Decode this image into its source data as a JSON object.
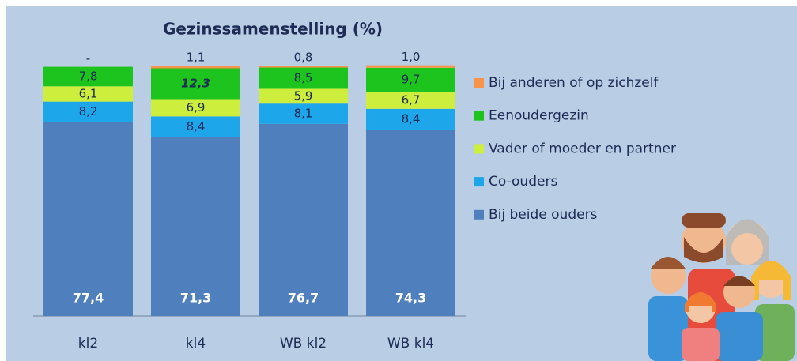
{
  "chart_data": {
    "type": "stacked-bar",
    "title": "Gezinssamenstelling (%)",
    "categories": [
      "kl2",
      "kl4",
      "WB kl2",
      "WB kl4"
    ],
    "series": [
      {
        "name": "Bij beide ouders",
        "color": "#4f7fbd",
        "values": [
          77.4,
          71.3,
          76.7,
          74.3
        ],
        "value_labels": [
          "77,4",
          "71,3",
          "76,7",
          "74,3"
        ]
      },
      {
        "name": "Co-ouders",
        "color": "#1ea6ea",
        "values": [
          8.2,
          8.4,
          8.1,
          8.4
        ],
        "value_labels": [
          "8,2",
          "8,4",
          "8,1",
          "8,4"
        ]
      },
      {
        "name": "Vader of moeder en partner",
        "color": "#cdee3c",
        "values": [
          6.1,
          6.9,
          5.9,
          6.7
        ],
        "value_labels": [
          "6,1",
          "6,9",
          "5,9",
          "6,7"
        ]
      },
      {
        "name": "Eenoudergezin",
        "color": "#1ec41e",
        "values": [
          7.8,
          12.3,
          8.5,
          9.7
        ],
        "value_labels": [
          "7,8",
          "12,3",
          "8,5",
          "9,7"
        ]
      },
      {
        "name": "Bij anderen of op zichzelf",
        "color": "#f7944a",
        "values": [
          null,
          1.1,
          0.8,
          1.0
        ],
        "value_labels": [
          "-",
          "1,1",
          "0,8",
          "1,0"
        ]
      }
    ]
  }
}
